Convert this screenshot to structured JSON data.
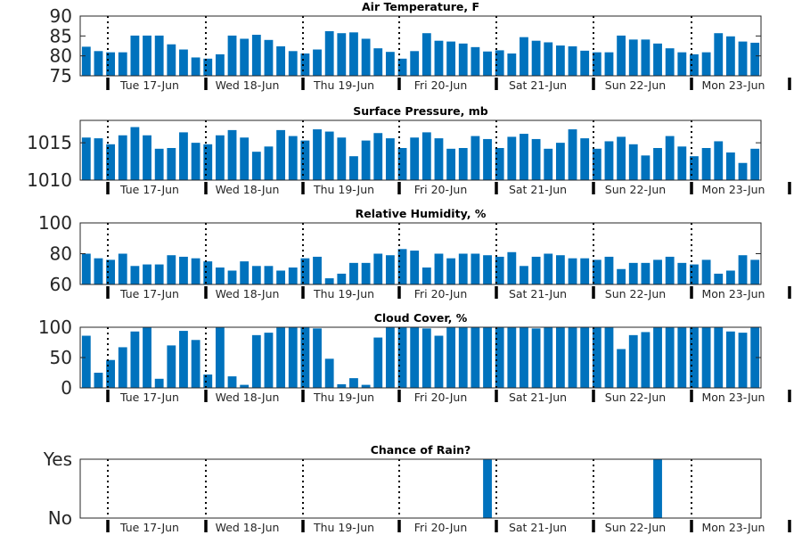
{
  "days": [
    "Tue 17-Jun",
    "Wed 18-Jun",
    "Thu 19-Jun",
    "Fri 20-Jun",
    "Sat 21-Jun",
    "Sun 22-Jun",
    "Mon 23-Jun"
  ],
  "colors": {
    "bar": "#0072bd",
    "axis": "#262626",
    "divider": "#000000"
  },
  "chart_data": [
    {
      "type": "bar",
      "title": "Air Temperature, F",
      "ylim": [
        75,
        90
      ],
      "yticks": [
        75,
        80,
        85,
        90
      ],
      "values": [
        82.3,
        81.2,
        80.9,
        80.9,
        85.1,
        85.1,
        85.1,
        82.9,
        81.6,
        79.6,
        79.3,
        80.4,
        85.1,
        84.3,
        85.3,
        84.0,
        82.4,
        81.2,
        80.6,
        81.6,
        86.2,
        85.7,
        85.9,
        84.3,
        81.9,
        81.0,
        79.3,
        81.2,
        85.7,
        83.8,
        83.6,
        83.1,
        82.2,
        81.1,
        81.4,
        80.6,
        84.7,
        83.8,
        83.4,
        82.6,
        82.4,
        81.3,
        80.9,
        80.9,
        85.1,
        84.1,
        84.1,
        83.1,
        81.9,
        80.9,
        80.4,
        80.9,
        85.7,
        84.9,
        83.6,
        83.3
      ]
    },
    {
      "type": "bar",
      "title": "Surface Pressure, mb",
      "ylim": [
        1010,
        1018
      ],
      "yticks": [
        1010,
        1015
      ],
      "values": [
        1015.7,
        1015.6,
        1014.8,
        1016.0,
        1017.1,
        1016.0,
        1014.2,
        1014.3,
        1016.4,
        1015.0,
        1014.8,
        1016.0,
        1016.7,
        1015.7,
        1013.8,
        1014.5,
        1016.7,
        1015.9,
        1015.3,
        1016.8,
        1016.5,
        1015.7,
        1013.2,
        1015.3,
        1016.3,
        1015.6,
        1014.3,
        1015.7,
        1016.4,
        1015.6,
        1014.2,
        1014.3,
        1015.9,
        1015.5,
        1014.3,
        1015.8,
        1016.2,
        1015.5,
        1014.2,
        1015.0,
        1016.8,
        1015.6,
        1014.2,
        1015.2,
        1015.8,
        1014.8,
        1013.3,
        1014.3,
        1015.9,
        1014.5,
        1013.2,
        1014.3,
        1015.2,
        1013.7,
        1012.3,
        1014.2
      ]
    },
    {
      "type": "bar",
      "title": "Relative Humidity, %",
      "ylim": [
        60,
        100
      ],
      "yticks": [
        60,
        80,
        100
      ],
      "values": [
        80,
        77,
        76,
        80,
        72,
        73,
        73,
        79,
        78,
        77,
        75,
        71,
        69,
        75,
        72,
        72,
        69,
        71,
        77,
        78,
        64,
        67,
        74,
        74,
        80,
        79,
        83,
        82,
        71,
        80,
        77,
        80,
        80,
        79,
        78,
        81,
        72,
        78,
        80,
        79,
        77,
        77,
        76,
        78,
        70,
        74,
        74,
        76,
        78,
        74,
        73,
        76,
        67,
        69,
        79,
        76
      ]
    },
    {
      "type": "bar",
      "title": "Cloud Cover, %",
      "ylim": [
        0,
        100
      ],
      "yticks": [
        0,
        50,
        100
      ],
      "values": [
        86,
        25,
        46,
        67,
        93,
        100,
        15,
        70,
        94,
        79,
        22,
        100,
        19,
        5,
        87,
        91,
        100,
        100,
        100,
        98,
        48,
        6,
        16,
        5,
        83,
        100,
        100,
        100,
        98,
        86,
        100,
        100,
        100,
        100,
        100,
        100,
        100,
        98,
        100,
        100,
        100,
        100,
        100,
        100,
        64,
        87,
        92,
        100,
        100,
        100,
        100,
        100,
        100,
        93,
        91,
        100
      ]
    },
    {
      "type": "bar",
      "title": "Chance of Rain?",
      "ylim": [
        0,
        1
      ],
      "ytick_labels": [
        "No",
        "Yes"
      ],
      "values": [
        0,
        0,
        0,
        0,
        0,
        0,
        0,
        0,
        0,
        0,
        0,
        0,
        0,
        0,
        0,
        0,
        0,
        0,
        0,
        0,
        0,
        0,
        0,
        0,
        0,
        0,
        0,
        0,
        0,
        0,
        0,
        0,
        0,
        1,
        0,
        0,
        0,
        0,
        0,
        0,
        0,
        0,
        0,
        0,
        0,
        0,
        0,
        1,
        0,
        0,
        0,
        0,
        0,
        0,
        0,
        0
      ]
    }
  ]
}
